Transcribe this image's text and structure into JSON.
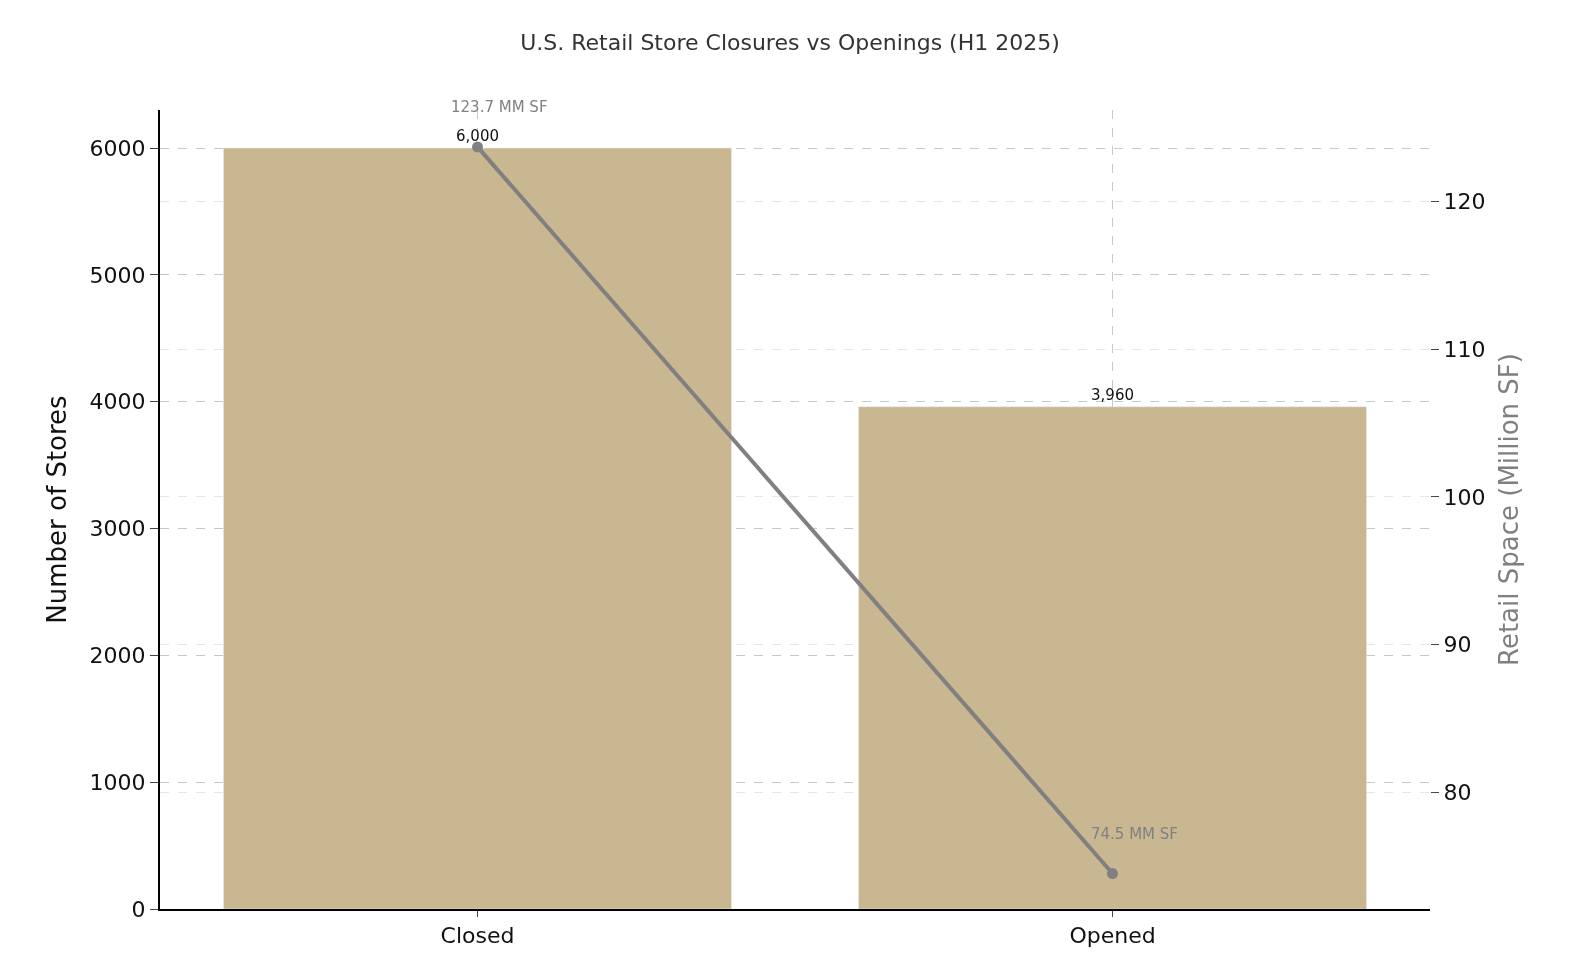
{
  "chart_data": {
    "type": "bar",
    "title": "U.S. Retail Store Closures vs Openings (H1 2025)",
    "ylabel": "Number of Stores",
    "y2label": "Retail Space (Million SF)",
    "categories": [
      "Closed",
      "Opened"
    ],
    "series": [
      {
        "color": "#c9b792",
        "values": [
          6000,
          3960
        ],
        "value_labels": [
          "6,000",
          "3,960"
        ]
      },
      {
        "type": "line",
        "axis": "y2",
        "color": "#808080",
        "values": [
          123.7,
          74.5
        ],
        "value_labels": [
          "123.7 MM SF",
          "74.5 MM SF"
        ],
        "marker": "circle"
      }
    ],
    "ylim": [
      0,
      6300
    ],
    "yticks": [
      0,
      1000,
      2000,
      3000,
      4000,
      5000,
      6000
    ],
    "y2lim": [
      72.1,
      126.2
    ],
    "y2ticks": [
      80,
      90,
      100,
      110,
      120
    ],
    "grid": true,
    "legend": false
  }
}
